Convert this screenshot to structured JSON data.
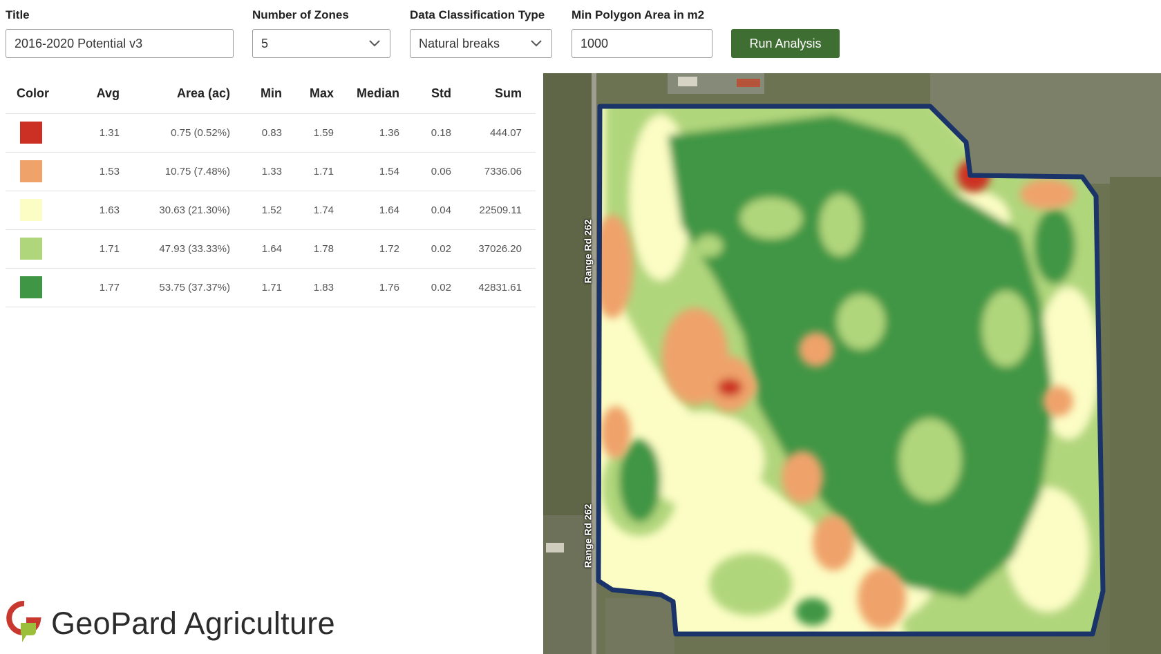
{
  "form": {
    "title_label": "Title",
    "title_value": "2016-2020 Potential v3",
    "zones_label": "Number of Zones",
    "zones_value": "5",
    "classification_label": "Data Classification Type",
    "classification_value": "Natural breaks",
    "min_area_label": "Min Polygon Area in m2",
    "min_area_value": "1000",
    "run_label": "Run Analysis",
    "run_color": "#3f6e32"
  },
  "table": {
    "headers": [
      "Color",
      "Avg",
      "Area (ac)",
      "Min",
      "Max",
      "Median",
      "Std",
      "Sum"
    ],
    "rows": [
      {
        "color": "#cc3024",
        "avg": "1.31",
        "area": "0.75 (0.52%)",
        "min": "0.83",
        "max": "1.59",
        "median": "1.36",
        "std": "0.18",
        "sum": "444.07"
      },
      {
        "color": "#efa36a",
        "avg": "1.53",
        "area": "10.75 (7.48%)",
        "min": "1.33",
        "max": "1.71",
        "median": "1.54",
        "std": "0.06",
        "sum": "7336.06"
      },
      {
        "color": "#fcfdc4",
        "avg": "1.63",
        "area": "30.63 (21.30%)",
        "min": "1.52",
        "max": "1.74",
        "median": "1.64",
        "std": "0.04",
        "sum": "22509.11"
      },
      {
        "color": "#b0d67c",
        "avg": "1.71",
        "area": "47.93 (33.33%)",
        "min": "1.64",
        "max": "1.78",
        "median": "1.72",
        "std": "0.02",
        "sum": "37026.20"
      },
      {
        "color": "#3f9645",
        "avg": "1.77",
        "area": "53.75 (37.37%)",
        "min": "1.71",
        "max": "1.83",
        "median": "1.76",
        "std": "0.02",
        "sum": "42831.61"
      }
    ]
  },
  "map": {
    "road_label_upper": "Range Rd 262",
    "road_label_lower": "Range Rd 262",
    "boundary_color": "#1a3368"
  },
  "brand": {
    "name": "GeoPard Agriculture",
    "logo_icon": "geopard-g-logo-icon"
  }
}
